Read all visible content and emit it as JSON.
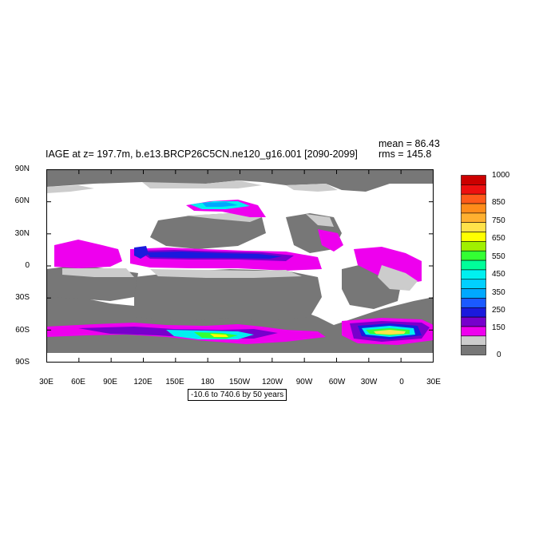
{
  "header": {
    "title": "IAGE at z= 197.7m, b.e13.BRCP26C5CN.ne120_g16.001 [2090-2099]",
    "mean": "mean = 86.43",
    "rms": "rms = 145.8"
  },
  "axes": {
    "lat_labels": [
      "90N",
      "60N",
      "30N",
      "0",
      "30S",
      "60S",
      "90S"
    ],
    "lon_labels": [
      "30E",
      "60E",
      "90E",
      "120E",
      "150E",
      "180",
      "150W",
      "120W",
      "90W",
      "60W",
      "30W",
      "0",
      "30E"
    ]
  },
  "colorbar": {
    "labels": [
      "1000",
      "850",
      "750",
      "650",
      "550",
      "450",
      "350",
      "250",
      "150",
      "0"
    ],
    "colors": [
      "#cc0000",
      "#ee1010",
      "#ff5a1a",
      "#ff8c1a",
      "#ffb030",
      "#ffe24a",
      "#ffff00",
      "#a0f000",
      "#33ff33",
      "#00ff99",
      "#00f0f0",
      "#00d0ff",
      "#00a8ff",
      "#1a5aff",
      "#1a1add",
      "#7700cc",
      "#ee00ee",
      "#cccccc",
      "#777777"
    ]
  },
  "caption": "-10.6 to 740.6 by 50 years",
  "colors": {
    "land": "#ffffff",
    "ocean_low": "#777777",
    "band_0_50": "#cccccc",
    "band_100_150": "#ee00ee",
    "band_150_200": "#7700cc",
    "band_200_250": "#1a1add",
    "band_300_350": "#00a8ff",
    "band_400_450": "#00f0f0",
    "band_500_550": "#33ff33",
    "band_600_650": "#ffff00",
    "band_650_700": "#ffe24a"
  }
}
